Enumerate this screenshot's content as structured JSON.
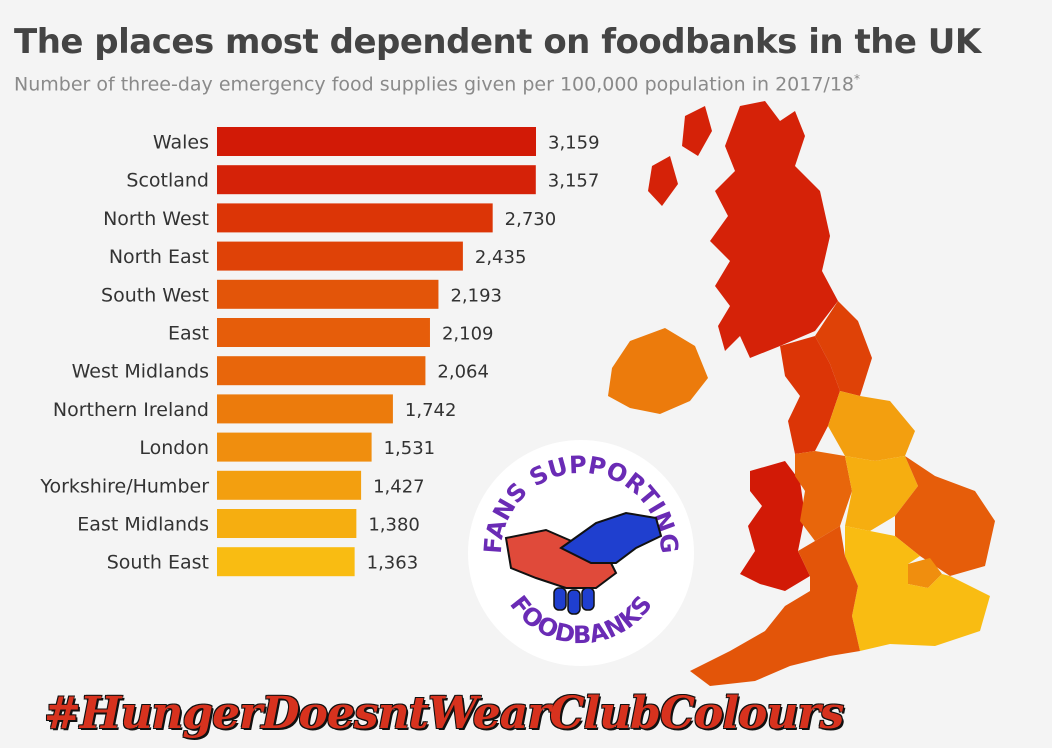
{
  "header": {
    "title": "The places most dependent on foodbanks in the UK",
    "subtitle": "Number of three-day emergency food supplies given per 100,000 population in 2017/18",
    "subtitle_mark": "*"
  },
  "chart_data": {
    "type": "bar",
    "orientation": "horizontal",
    "title": "The places most dependent on foodbanks in the UK",
    "subtitle": "Number of three-day emergency food supplies given per 100,000 population in 2017/18*",
    "categories": [
      "Wales",
      "Scotland",
      "North West",
      "North East",
      "South West",
      "East",
      "West Midlands",
      "Northern Ireland",
      "London",
      "Yorkshire/Humber",
      "East Midlands",
      "South East"
    ],
    "values": [
      3159,
      3157,
      2730,
      2435,
      2193,
      2109,
      2064,
      1742,
      1531,
      1427,
      1380,
      1363
    ],
    "value_labels": [
      "3,159",
      "3,157",
      "2,730",
      "2,435",
      "2,193",
      "2,109",
      "2,064",
      "1,742",
      "1,531",
      "1,427",
      "1,380",
      "1,363"
    ],
    "colors": [
      "#d21a06",
      "#d52208",
      "#dc3506",
      "#df4207",
      "#e35509",
      "#e65d0a",
      "#e8660b",
      "#ec7b0c",
      "#f08e0e",
      "#f39f0f",
      "#f6ae10",
      "#f9bc12"
    ],
    "xlim": [
      0,
      3159
    ],
    "grid": false,
    "legend": "none"
  },
  "badge": {
    "top_text": "FANS SUPPORTING",
    "bottom_text": "FOODBANKS",
    "ring_color": "#6a2bb5",
    "hand_left_color": "#e04a3a",
    "hand_right_color": "#1f3fcf"
  },
  "hashtag": "#HungerDoesntWearClubColours"
}
